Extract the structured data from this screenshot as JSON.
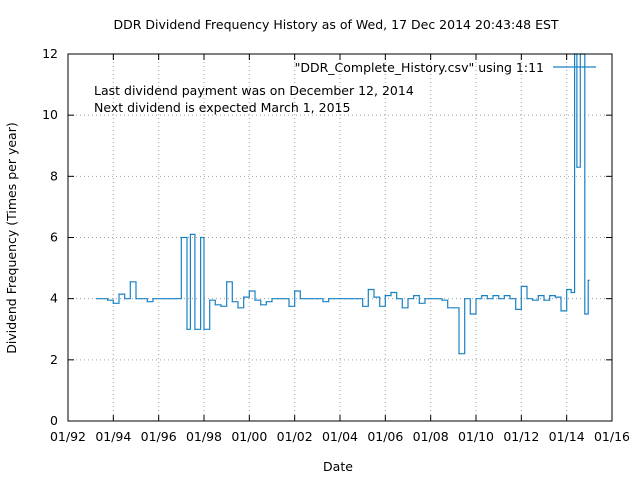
{
  "chart_data": {
    "type": "line",
    "title": "DDR Dividend Frequency History as of Wed, 17 Dec 2014 20:43:48 EST",
    "xlabel": "Date",
    "ylabel": "Dividend Frequency (Times per year)",
    "ylim": [
      0,
      12
    ],
    "yticks": [
      "0",
      "2",
      "4",
      "6",
      "8",
      "10",
      "12"
    ],
    "xlim": [
      1992.0,
      2016.0
    ],
    "xticks": [
      "01/92",
      "01/94",
      "01/96",
      "01/98",
      "01/00",
      "01/02",
      "01/04",
      "01/06",
      "01/08",
      "01/10",
      "01/12",
      "01/14",
      "01/16"
    ],
    "grid": true,
    "legend_position": "top-right",
    "annotations": [
      "Last dividend payment was on December 12, 2014",
      "Next dividend is expected March 1, 2015"
    ],
    "series": [
      {
        "name": "\"DDR_Complete_History.csv\" using 1:11",
        "color": "#1a82c3",
        "step": true,
        "x": [
          1993.25,
          1993.75,
          1994.0,
          1994.25,
          1994.5,
          1994.75,
          1995.0,
          1995.25,
          1995.5,
          1995.75,
          1996.0,
          1996.25,
          1996.5,
          1996.75,
          1997.0,
          1997.25,
          1997.4,
          1997.6,
          1997.85,
          1998.0,
          1998.25,
          1998.5,
          1998.75,
          1999.0,
          1999.25,
          1999.5,
          1999.75,
          2000.0,
          2000.25,
          2000.5,
          2000.75,
          2001.0,
          2001.25,
          2001.5,
          2001.75,
          2002.0,
          2002.25,
          2002.5,
          2002.75,
          2003.0,
          2003.25,
          2003.5,
          2003.75,
          2004.0,
          2004.25,
          2004.5,
          2004.75,
          2005.0,
          2005.25,
          2005.5,
          2005.75,
          2006.0,
          2006.25,
          2006.5,
          2006.75,
          2007.0,
          2007.25,
          2007.5,
          2007.75,
          2008.0,
          2008.25,
          2008.5,
          2008.75,
          2009.0,
          2009.25,
          2009.5,
          2009.75,
          2010.0,
          2010.25,
          2010.5,
          2010.75,
          2011.0,
          2011.25,
          2011.5,
          2011.75,
          2012.0,
          2012.25,
          2012.5,
          2012.75,
          2013.0,
          2013.25,
          2013.5,
          2013.75,
          2014.0,
          2014.2,
          2014.35,
          2014.45,
          2014.6,
          2014.8,
          2014.95
        ],
        "y": [
          4.0,
          3.95,
          3.85,
          4.15,
          4.0,
          4.55,
          4.0,
          4.0,
          3.9,
          4.0,
          4.0,
          4.0,
          4.0,
          4.0,
          6.0,
          3.0,
          6.1,
          3.0,
          6.0,
          3.0,
          3.95,
          3.8,
          3.75,
          4.55,
          3.9,
          3.7,
          4.05,
          4.25,
          3.95,
          3.8,
          3.9,
          4.0,
          4.0,
          4.0,
          3.75,
          4.25,
          4.0,
          4.0,
          4.0,
          4.0,
          3.9,
          4.0,
          4.0,
          4.0,
          4.0,
          4.0,
          4.0,
          3.75,
          4.3,
          4.05,
          3.75,
          4.1,
          4.2,
          4.0,
          3.7,
          4.0,
          4.1,
          3.85,
          4.0,
          4.0,
          4.0,
          3.95,
          3.7,
          3.7,
          2.2,
          4.0,
          3.5,
          4.0,
          4.1,
          4.0,
          4.1,
          4.0,
          4.1,
          4.0,
          3.65,
          4.4,
          4.0,
          3.95,
          4.1,
          3.95,
          4.1,
          4.05,
          3.6,
          4.3,
          4.2,
          12.0,
          8.3,
          12.0,
          3.5,
          4.6
        ]
      }
    ]
  }
}
